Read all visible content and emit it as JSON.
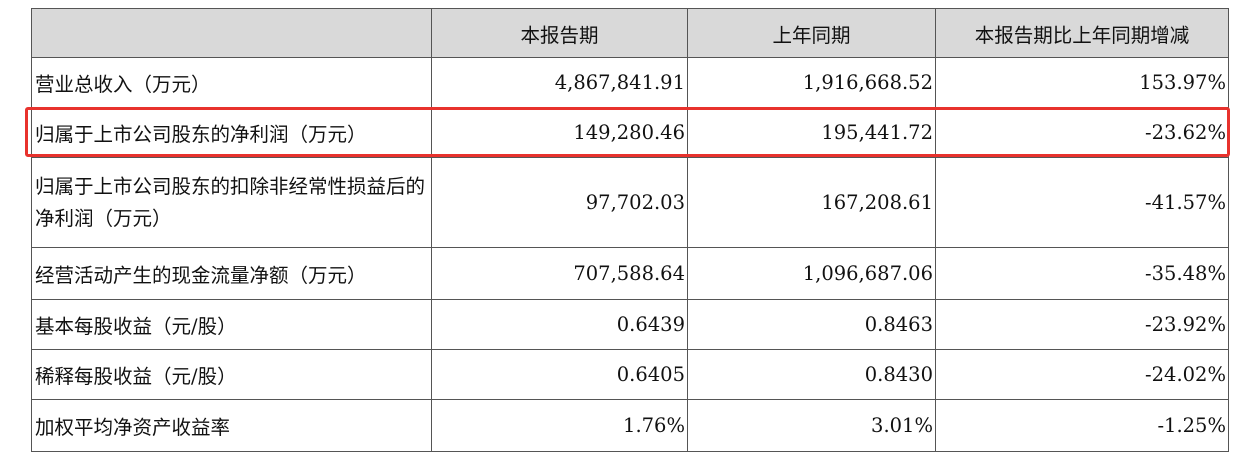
{
  "table": {
    "headers": [
      "",
      "本报告期",
      "上年同期",
      "本报告期比上年同期增减"
    ],
    "rows": [
      {
        "label": "营业总收入（万元）",
        "current": "4,867,841.91",
        "prior": "1,916,668.52",
        "change": "153.97%"
      },
      {
        "label": "归属于上市公司股东的净利润（万元）",
        "current": "149,280.46",
        "prior": "195,441.72",
        "change": "-23.62%"
      },
      {
        "label": "归属于上市公司股东的扣除非经常性损益后的净利润（万元）",
        "current": "97,702.03",
        "prior": "167,208.61",
        "change": "-41.57%"
      },
      {
        "label": "经营活动产生的现金流量净额（万元）",
        "current": "707,588.64",
        "prior": "1,096,687.06",
        "change": "-35.48%"
      },
      {
        "label": "基本每股收益（元/股）",
        "current": "0.6439",
        "prior": "0.8463",
        "change": "-23.92%"
      },
      {
        "label": "稀释每股收益（元/股）",
        "current": "0.6405",
        "prior": "0.8430",
        "change": "-24.02%"
      },
      {
        "label": "加权平均净资产收益率",
        "current": "1.76%",
        "prior": "3.01%",
        "change": "-1.25%"
      }
    ]
  },
  "highlight": {
    "row_label": "归属于上市公司股东的净利润（万元）",
    "color": "#e8322d"
  },
  "colors": {
    "header_background": "#d9d9d9",
    "border": "#555555",
    "text": "#111111"
  }
}
